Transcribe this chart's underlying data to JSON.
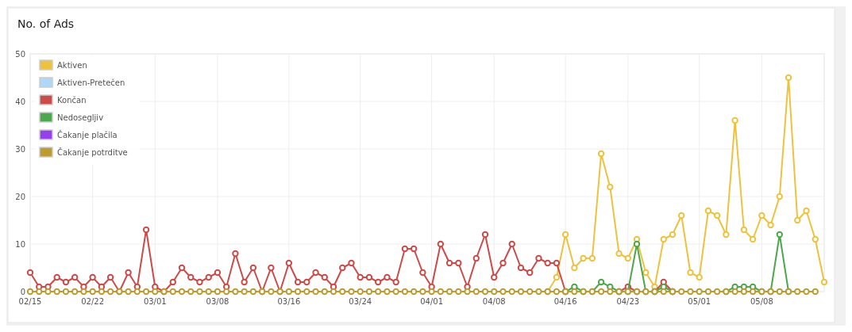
{
  "chart_data": {
    "type": "line",
    "title": "No. of Ads",
    "x": [
      "--02-15",
      "--02-16",
      "--02-17",
      "--02-18",
      "--02-19",
      "--02-20",
      "--02-21",
      "--02-22",
      "--02-23",
      "--02-24",
      "--02-25",
      "--02-26",
      "--02-27",
      "--02-28",
      "--03-01",
      "--03-02",
      "--03-03",
      "--03-04",
      "--03-05",
      "--03-06",
      "--03-07",
      "--03-08",
      "--03-09",
      "--03-10",
      "--03-11",
      "--03-12",
      "--03-13",
      "--03-14",
      "--03-15",
      "--03-16",
      "--03-17",
      "--03-18",
      "--03-19",
      "--03-20",
      "--03-21",
      "--03-22",
      "--03-23",
      "--03-24",
      "--03-25",
      "--03-26",
      "--03-27",
      "--03-28",
      "--03-29",
      "--03-30",
      "--03-31",
      "--04-01",
      "--04-02",
      "--04-03",
      "--04-04",
      "--04-05",
      "--04-06",
      "--04-07",
      "--04-08",
      "--04-09",
      "--04-10",
      "--04-11",
      "--04-12",
      "--04-13",
      "--04-14",
      "--04-15",
      "--04-16",
      "--04-17",
      "--04-18",
      "--04-19",
      "--04-20",
      "--04-21",
      "--04-22",
      "--04-23",
      "--04-24",
      "--04-25",
      "--04-26",
      "--04-27",
      "--04-28",
      "--04-29",
      "--04-30",
      "--05-01",
      "--05-02",
      "--05-03",
      "--05-04",
      "--05-05",
      "--05-06",
      "--05-07",
      "--05-08",
      "--05-09",
      "--05-10",
      "--05-11",
      "--05-12",
      "--05-13",
      "--05-14",
      "--05-15"
    ],
    "series": [
      {
        "name": "Aktiven",
        "color": "#edc240",
        "values": [
          null,
          null,
          null,
          null,
          null,
          null,
          null,
          null,
          null,
          null,
          null,
          null,
          null,
          null,
          null,
          null,
          null,
          null,
          null,
          null,
          null,
          null,
          null,
          null,
          null,
          null,
          null,
          null,
          null,
          null,
          null,
          null,
          null,
          null,
          null,
          null,
          null,
          null,
          null,
          null,
          null,
          null,
          null,
          null,
          null,
          null,
          null,
          null,
          null,
          null,
          null,
          null,
          null,
          null,
          null,
          null,
          null,
          null,
          0,
          3,
          12,
          5,
          7,
          7,
          29,
          22,
          8,
          7,
          11,
          4,
          1,
          11,
          12,
          16,
          4,
          3,
          17,
          16,
          12,
          36,
          13,
          11,
          16,
          14,
          20,
          45,
          15,
          17,
          11,
          2
        ]
      },
      {
        "name": "Aktiven-Pretečen",
        "color": "#afd8f8",
        "values": [
          null,
          null,
          null,
          null,
          null,
          null,
          null,
          null,
          null,
          null,
          null,
          null,
          null,
          null,
          null,
          null,
          null,
          null,
          null,
          null,
          null,
          null,
          null,
          null,
          null,
          null,
          null,
          null,
          null,
          null,
          null,
          null,
          null,
          null,
          null,
          null,
          null,
          null,
          null,
          null,
          null,
          null,
          null,
          null,
          null,
          null,
          null,
          null,
          null,
          null,
          null,
          null,
          null,
          null,
          null,
          null,
          null,
          null,
          null,
          null,
          null,
          null,
          null,
          null,
          null,
          null,
          null,
          null,
          null,
          null,
          null,
          null,
          null,
          null,
          null,
          null,
          null,
          null,
          null,
          null,
          null,
          null,
          null,
          null,
          null,
          null,
          null,
          null,
          null,
          null
        ]
      },
      {
        "name": "Končan",
        "color": "#cb4b4b",
        "values": [
          4,
          1,
          1,
          3,
          2,
          3,
          1,
          3,
          1,
          3,
          0,
          4,
          1,
          13,
          1,
          0,
          2,
          5,
          3,
          2,
          3,
          4,
          1,
          8,
          2,
          5,
          0,
          5,
          0,
          6,
          2,
          2,
          4,
          3,
          1,
          5,
          6,
          3,
          3,
          2,
          3,
          2,
          9,
          9,
          4,
          1,
          10,
          6,
          6,
          1,
          7,
          12,
          3,
          6,
          10,
          5,
          4,
          7,
          6,
          6,
          0,
          null,
          null,
          null,
          null,
          null,
          0,
          1,
          0,
          null,
          0,
          2,
          0,
          null,
          null,
          null,
          null,
          null,
          null,
          null,
          null,
          null,
          null,
          null,
          null,
          null,
          null,
          null,
          null,
          null
        ]
      },
      {
        "name": "Nedosegljiv",
        "color": "#4da74d",
        "values": [
          null,
          null,
          null,
          null,
          null,
          null,
          null,
          null,
          null,
          null,
          null,
          null,
          null,
          null,
          null,
          null,
          null,
          null,
          null,
          null,
          null,
          null,
          null,
          null,
          null,
          null,
          null,
          null,
          null,
          null,
          null,
          null,
          null,
          null,
          null,
          null,
          null,
          null,
          null,
          null,
          null,
          null,
          null,
          null,
          null,
          null,
          null,
          null,
          null,
          null,
          null,
          null,
          null,
          null,
          null,
          null,
          null,
          null,
          null,
          null,
          0,
          1,
          0,
          0,
          2,
          1,
          0,
          0,
          10,
          0,
          0,
          1,
          0,
          null,
          null,
          null,
          null,
          null,
          0,
          1,
          1,
          1,
          0,
          0,
          12,
          0,
          null,
          null,
          null,
          null
        ]
      },
      {
        "name": "Čakanje plačila",
        "color": "#9440ed",
        "values": [
          null,
          null,
          null,
          null,
          null,
          null,
          null,
          null,
          null,
          null,
          null,
          null,
          null,
          null,
          null,
          null,
          null,
          null,
          null,
          null,
          null,
          null,
          null,
          null,
          null,
          null,
          null,
          null,
          null,
          null,
          null,
          null,
          null,
          null,
          null,
          null,
          null,
          null,
          null,
          null,
          null,
          null,
          null,
          null,
          null,
          null,
          null,
          null,
          null,
          null,
          null,
          null,
          null,
          null,
          null,
          null,
          null,
          null,
          null,
          null,
          null,
          null,
          null,
          null,
          null,
          null,
          null,
          null,
          null,
          null,
          null,
          null,
          null,
          null,
          null,
          null,
          null,
          null,
          null,
          null,
          null,
          null,
          null,
          null,
          null,
          null,
          null,
          null,
          null,
          null
        ]
      },
      {
        "name": "Čakanje potrditve",
        "color": "#bd9b33",
        "values": [
          0,
          0,
          0,
          0,
          0,
          0,
          0,
          0,
          0,
          0,
          0,
          0,
          0,
          0,
          0,
          0,
          0,
          0,
          0,
          0,
          0,
          0,
          0,
          0,
          0,
          0,
          0,
          0,
          0,
          0,
          0,
          0,
          0,
          0,
          0,
          0,
          0,
          0,
          0,
          0,
          0,
          0,
          0,
          0,
          0,
          0,
          0,
          0,
          0,
          0,
          0,
          0,
          0,
          0,
          0,
          0,
          0,
          0,
          0,
          0,
          0,
          0,
          0,
          0,
          0,
          0,
          0,
          0,
          0,
          0,
          0,
          0,
          0,
          0,
          0,
          0,
          0,
          0,
          0,
          0,
          0,
          0,
          0,
          0,
          0,
          0,
          0,
          0,
          0,
          null
        ]
      }
    ],
    "xlim": [
      "--02-15",
      "--05-15"
    ],
    "xticks": [
      {
        "value": "--02-15",
        "label": "02/15"
      },
      {
        "value": "--02-22",
        "label": "02/22"
      },
      {
        "value": "--03-01",
        "label": "03/01"
      },
      {
        "value": "--03-08",
        "label": "03/08"
      },
      {
        "value": "--03-16",
        "label": "03/16"
      },
      {
        "value": "--03-24",
        "label": "03/24"
      },
      {
        "value": "--04-01",
        "label": "04/01"
      },
      {
        "value": "--04-08",
        "label": "04/08"
      },
      {
        "value": "--04-16",
        "label": "04/16"
      },
      {
        "value": "--04-23",
        "label": "04/23"
      },
      {
        "value": "--05-01",
        "label": "05/01"
      },
      {
        "value": "--05-08",
        "label": "05/08"
      }
    ],
    "ylim": [
      0,
      50
    ],
    "yticks": [
      0,
      10,
      20,
      30,
      40,
      50
    ],
    "grid": true,
    "legend": "top left",
    "marker": "circle",
    "line_style": "solid"
  }
}
